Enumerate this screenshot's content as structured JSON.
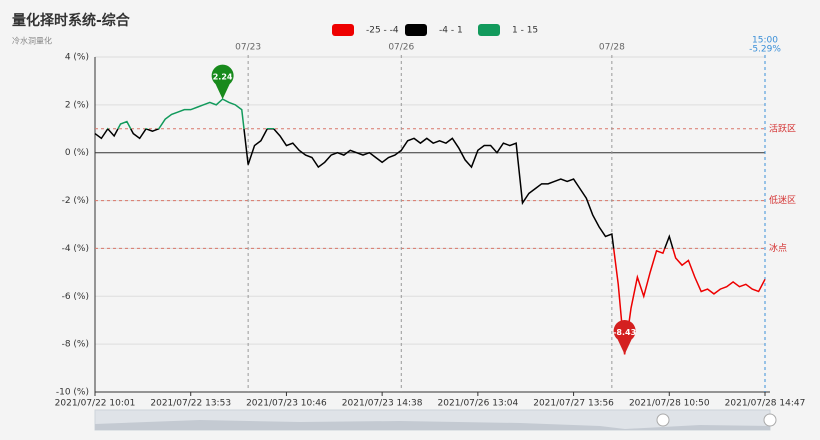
{
  "chart_data": {
    "type": "line",
    "title": "量化择时系统-综合",
    "subtitle": "冷水洞量化",
    "categories": [
      "2021/07/22 10:01",
      null,
      null,
      null,
      null,
      null,
      null,
      null,
      null,
      null,
      null,
      null,
      null,
      null,
      null,
      "2021/07/22 13:53",
      null,
      null,
      null,
      null,
      null,
      null,
      null,
      null,
      null,
      null,
      null,
      null,
      null,
      null,
      "2021/07/23 10:46",
      null,
      null,
      null,
      null,
      null,
      null,
      null,
      null,
      null,
      null,
      null,
      null,
      null,
      null,
      "2021/07/23 14:38",
      null,
      null,
      null,
      null,
      null,
      null,
      null,
      null,
      null,
      null,
      null,
      null,
      null,
      null,
      "2021/07/26 13:04",
      null,
      null,
      null,
      null,
      null,
      null,
      null,
      null,
      null,
      null,
      null,
      null,
      null,
      null,
      "2021/07/27 13:56",
      null,
      null,
      null,
      null,
      null,
      null,
      null,
      null,
      null,
      null,
      null,
      null,
      null,
      null,
      "2021/07/28 10:50",
      null,
      null,
      null,
      null,
      null,
      null,
      null,
      null,
      null,
      null,
      null,
      null,
      null,
      null,
      "2021/07/28 14:47"
    ],
    "series": [
      {
        "values": [
          0.8,
          0.6,
          1.0,
          0.7,
          1.2,
          1.3,
          0.8,
          0.6,
          1.0,
          0.9,
          1.0,
          1.4,
          1.6,
          1.7,
          1.8,
          1.8,
          1.9,
          2.0,
          2.1,
          2.0,
          2.24,
          2.1,
          2.0,
          1.8,
          -0.5,
          0.3,
          0.5,
          1.0,
          1.0,
          0.7,
          0.3,
          0.4,
          0.1,
          -0.1,
          -0.2,
          -0.6,
          -0.4,
          -0.1,
          0.0,
          -0.1,
          0.1,
          0.0,
          -0.1,
          0.0,
          -0.2,
          -0.4,
          -0.2,
          -0.1,
          0.1,
          0.5,
          0.6,
          0.4,
          0.6,
          0.4,
          0.5,
          0.4,
          0.6,
          0.2,
          -0.3,
          -0.6,
          0.1,
          0.3,
          0.3,
          0.0,
          0.4,
          0.3,
          0.4,
          -2.1,
          -1.7,
          -1.5,
          -1.3,
          -1.3,
          -1.2,
          -1.1,
          -1.2,
          -1.1,
          -1.5,
          -1.9,
          -2.6,
          -3.1,
          -3.5,
          -3.4,
          -5.5,
          -8.43,
          -6.5,
          -5.2,
          -6.0,
          -5.0,
          -4.1,
          -4.2,
          -3.5,
          -4.4,
          -4.7,
          -4.5,
          -5.2,
          -5.8,
          -5.7,
          -5.9,
          -5.7,
          -5.6,
          -5.4,
          -5.6,
          -5.5,
          -5.7,
          -5.8,
          -5.29
        ]
      }
    ],
    "pieces": [
      {
        "min": -25,
        "max": -4,
        "label": "-25 - -4",
        "color": "#ee0000"
      },
      {
        "min": -4,
        "max": 1,
        "label": "-4 - 1",
        "color": "#000000"
      },
      {
        "min": 1,
        "max": 15,
        "label": "1 - 15",
        "color": "#129a5c"
      }
    ],
    "ylim": [
      -10,
      4
    ],
    "yticks": [
      {
        "value": -10,
        "label": "-10 (%)"
      },
      {
        "value": -8,
        "label": "-8 (%)"
      },
      {
        "value": -6,
        "label": "-6 (%)"
      },
      {
        "value": -4,
        "label": "-4 (%)"
      },
      {
        "value": -2,
        "label": "-2 (%)"
      },
      {
        "value": 0,
        "label": "0 (%)"
      },
      {
        "value": 2,
        "label": "2 (%)"
      },
      {
        "value": 4,
        "label": "4 (%)"
      }
    ],
    "grid": true,
    "hlines": [
      {
        "value": 1,
        "label": "活跃区"
      },
      {
        "value": -2,
        "label": "低迷区"
      },
      {
        "value": -4,
        "label": "冰点"
      }
    ],
    "vlines": [
      {
        "index": 24,
        "label": "07/23"
      },
      {
        "index": 48,
        "label": "07/26"
      },
      {
        "index": 81,
        "label": "07/28"
      }
    ],
    "end_marker": {
      "index": 105,
      "time": "15:00",
      "value_label": "-5.29%"
    },
    "mark_points": [
      {
        "index": 20,
        "color": "#188a1c"
      },
      {
        "index": 83,
        "color": "#d42020"
      }
    ]
  }
}
